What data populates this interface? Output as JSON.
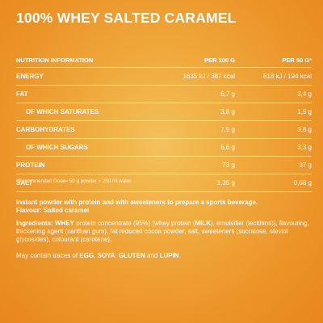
{
  "title": "100% WHEY SALTED CARAMEL",
  "table": {
    "headers": [
      "NUTRITION INFORMATION",
      "PER 100 G",
      "PER 50 G*"
    ],
    "rows": [
      {
        "label": "ENERGY",
        "per100": "1635 kJ / 387 kcal",
        "per50": "818 kJ / 194 kcal",
        "indent": false
      },
      {
        "label": "FAT",
        "per100": "6,7 g",
        "per50": "3,4 g",
        "indent": false
      },
      {
        "label": "OF WHICH SATURATES",
        "per100": "3,8 g",
        "per50": "1,9 g",
        "indent": true
      },
      {
        "label": "CARBOHYDRATES",
        "per100": "7,5 g",
        "per50": "3,8 g",
        "indent": false
      },
      {
        "label": "OF WHICH SUGARS",
        "per100": "6,6 g",
        "per50": "3,3 g",
        "indent": true
      },
      {
        "label": "PROTEIN",
        "per100": "73 g",
        "per50": "37 g",
        "indent": false
      },
      {
        "label": "SALT",
        "per100": "1,35 g",
        "per50": "0,68 g",
        "indent": false
      }
    ]
  },
  "footnote": "*Recommended Dose= 50 g powder + 250 ml water",
  "description": {
    "line1": "Instant powder with protein and with sweeteners to prepare a sports beverage.",
    "line2": "Flavour: Salted caramel"
  },
  "ingredients": {
    "label": "Ingredients:",
    "whey": "WHEY",
    "text1": " protein concentrate (95%) (whey protein (",
    "milk": "MILK",
    "text2": "), emulsifier (lecithins)), flavouring, thickening agent (xanthan gum), fat reduced cocoa powder, salt, sweeteners (sucralose, steviol glycosides), colourant (carotene)."
  },
  "traces": {
    "prefix": "May contain traces of ",
    "egg": "EGG",
    "sep1": ", ",
    "soya": "SOYA",
    "sep2": ", ",
    "gluten": "GLUTEN",
    "and": " and ",
    "lupin": "LUPIN",
    "suffix": "."
  },
  "colors": {
    "background_center": "#f4c15c",
    "background_edge": "#e8861c",
    "text": "#ffffff"
  }
}
